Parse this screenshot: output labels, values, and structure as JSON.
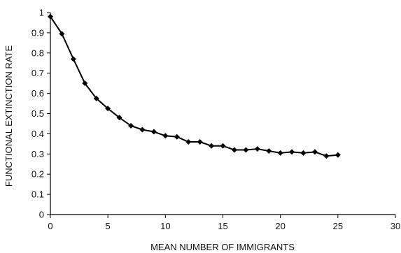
{
  "chart_data": {
    "type": "line",
    "title": "",
    "xlabel": "MEAN NUMBER OF IMMIGRANTS",
    "ylabel": "FUNCTIONAL EXTINCTION RATE",
    "xlim": [
      0,
      30
    ],
    "ylim": [
      0,
      1
    ],
    "xticks": [
      "0",
      "5",
      "10",
      "15",
      "20",
      "25",
      "30"
    ],
    "yticks": [
      "0",
      "0.1",
      "0.2",
      "0.3",
      "0.4",
      "0.5",
      "0.6",
      "0.7",
      "0.8",
      "0.9",
      "1"
    ],
    "grid": false,
    "legend": "none",
    "series": [
      {
        "x": [
          0,
          1,
          2,
          3,
          4,
          5,
          6,
          7,
          8,
          9,
          10,
          11,
          12,
          13,
          14,
          15,
          16,
          17,
          18,
          19,
          20,
          21,
          22,
          23,
          24,
          25
        ],
        "y": [
          0.98,
          0.895,
          0.77,
          0.65,
          0.575,
          0.525,
          0.48,
          0.44,
          0.42,
          0.41,
          0.39,
          0.385,
          0.36,
          0.36,
          0.34,
          0.34,
          0.32,
          0.32,
          0.325,
          0.315,
          0.305,
          0.31,
          0.305,
          0.31,
          0.29,
          0.295
        ],
        "color": "#000000",
        "marker": "diamond"
      }
    ]
  }
}
